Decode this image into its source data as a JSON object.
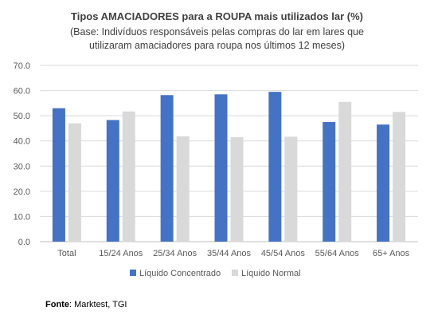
{
  "chart_data": {
    "type": "bar",
    "title": "Tipos AMACIADORES para a ROUPA mais utilizados lar (%)",
    "subtitle_lines": [
      "(Base: Indivíduos responsáveis pelas compras do lar em lares que",
      "utilizaram amaciadores para roupa nos últimos 12 meses)"
    ],
    "categories": [
      "Total",
      "15/24 Anos",
      "25/34 Anos",
      "35/44 Anos",
      "45/54 Anos",
      "55/64 Anos",
      "65+ Anos"
    ],
    "series": [
      {
        "name": "Líquido Concentrado",
        "color": "#4472C4",
        "values": [
          53.0,
          48.3,
          58.2,
          58.5,
          59.5,
          47.5,
          46.5
        ]
      },
      {
        "name": "Líquido Normal",
        "color": "#D9D9D9",
        "values": [
          47.0,
          51.7,
          41.8,
          41.5,
          41.7,
          55.5,
          51.5
        ]
      }
    ],
    "ylim": [
      0,
      70
    ],
    "yticks": [
      "0.0",
      "10.0",
      "20.0",
      "30.0",
      "40.0",
      "50.0",
      "60.0",
      "70.0"
    ],
    "grid": true,
    "legend_position": "bottom"
  },
  "source": {
    "label": "Fonte",
    "text": ": Marktest, TGI"
  }
}
